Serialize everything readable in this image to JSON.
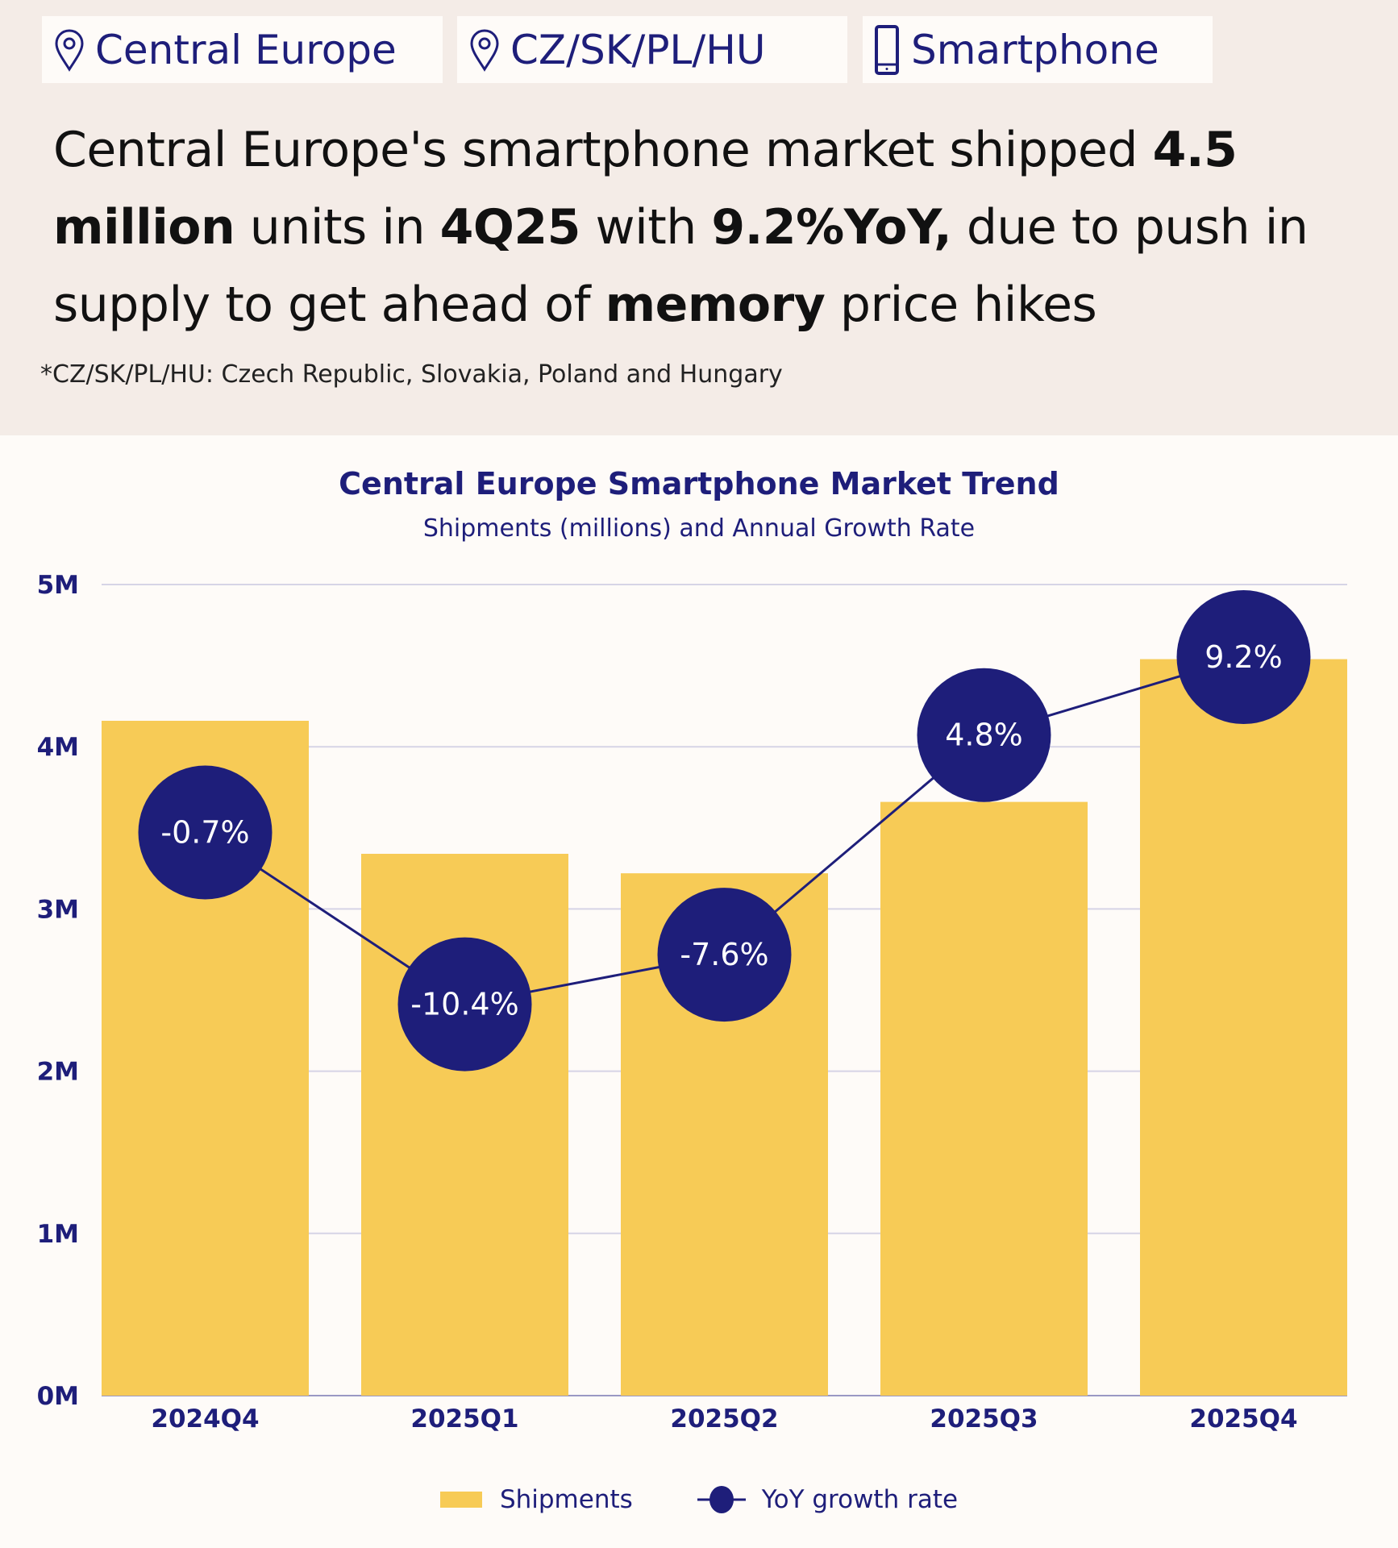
{
  "tags": [
    {
      "icon": "map-pin-icon",
      "label": "Central Europe"
    },
    {
      "icon": "map-pin-icon",
      "label": "CZ/SK/PL/HU"
    },
    {
      "icon": "smartphone-icon",
      "label": "Smartphone"
    }
  ],
  "headline": {
    "segments": [
      {
        "text": "Central Europe's smartphone market shipped ",
        "bold": false
      },
      {
        "text": "4.5 million",
        "bold": true
      },
      {
        "text": " units in ",
        "bold": false
      },
      {
        "text": "4Q25",
        "bold": true
      },
      {
        "text": " with ",
        "bold": false
      },
      {
        "text": "9.2%YoY,",
        "bold": true
      },
      {
        "text": " due to push in supply to get ahead of ",
        "bold": false
      },
      {
        "text": "memory",
        "bold": true
      },
      {
        "text": " price hikes",
        "bold": false
      }
    ]
  },
  "footnote": "*CZ/SK/PL/HU: Czech Republic, Slovakia, Poland and Hungary",
  "colors": {
    "bar": "#f7cb56",
    "line": "#1e1e7a",
    "text": "#1e1e7a",
    "header_bg": "#f4ece7",
    "chart_bg": "#fefbf8",
    "grid": "#d6d4e6"
  },
  "chart_data": {
    "type": "bar",
    "title": "Central Europe Smartphone Market Trend",
    "subtitle": "Shipments (millions) and Annual Growth Rate",
    "categories": [
      "2024Q4",
      "2025Q1",
      "2025Q2",
      "2025Q3",
      "2025Q4"
    ],
    "series": [
      {
        "name": "Shipments",
        "type": "bar",
        "unit": "millions",
        "values": [
          4.16,
          3.34,
          3.22,
          3.66,
          4.54
        ]
      },
      {
        "name": "YoY growth rate",
        "type": "line",
        "unit": "%",
        "values": [
          -0.7,
          -10.4,
          -7.6,
          4.8,
          9.2
        ],
        "labels": [
          "-0.7%",
          "-10.4%",
          "-7.6%",
          "4.8%",
          "9.2%"
        ]
      }
    ],
    "y_ticks": [
      "0M",
      "1M",
      "2M",
      "3M",
      "4M",
      "5M"
    ],
    "ylim": [
      0,
      5
    ],
    "y2lim": [
      -32.5,
      13.3
    ],
    "grid": true,
    "legend": {
      "position": "bottom-center",
      "items": [
        "Shipments",
        "YoY growth rate"
      ]
    },
    "xlabel": "",
    "ylabel": ""
  }
}
